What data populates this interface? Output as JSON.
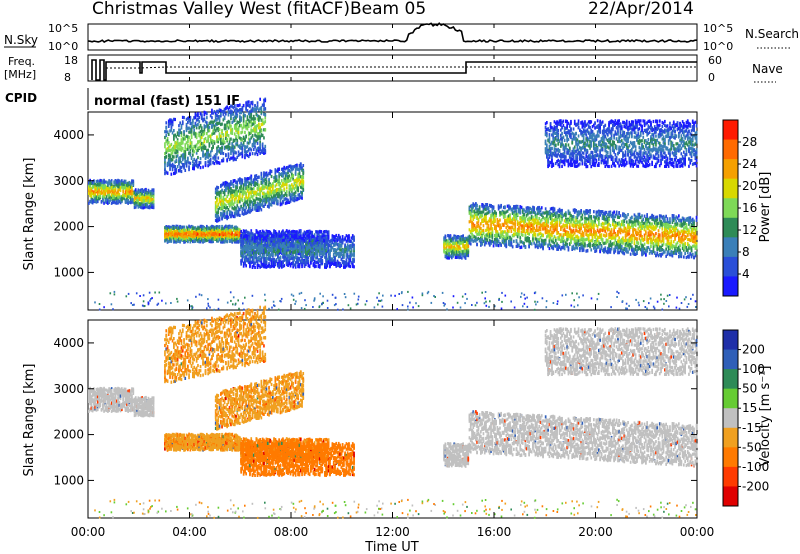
{
  "header": {
    "title": "Christmas Valley West (fitACF)",
    "beam": "Beam 05",
    "date": "22/Apr/2014"
  },
  "top_panels": {
    "nsky_label": "N.Sky",
    "nsearch_label": "N.Search",
    "freq_label_1": "Freq.",
    "freq_label_2": "[MHz]",
    "nave_label": "Nave",
    "cpid_label": "CPID",
    "cpid_value": "normal (fast) 151 IF",
    "noise_ticks": [
      "10^5",
      "10^0"
    ],
    "freq_ticks": [
      "18",
      "8"
    ],
    "nave_ticks": [
      "60",
      "0"
    ]
  },
  "x_axis": {
    "label": "Time UT",
    "ticks": [
      "00:00",
      "04:00",
      "08:00",
      "12:00",
      "16:00",
      "20:00",
      "00:00"
    ]
  },
  "power_panel": {
    "ylabel": "Slant Range [km]",
    "yticks": [
      "1000",
      "2000",
      "3000",
      "4000"
    ],
    "colorbar_label": "Power [dB]",
    "colorbar_ticks": [
      "4",
      "8",
      "12",
      "16",
      "20",
      "24",
      "28"
    ],
    "colors": [
      "#1a1aff",
      "#2a4fd8",
      "#3a7fb8",
      "#2e8b57",
      "#7ed957",
      "#d8d800",
      "#f5a000",
      "#ff6a00",
      "#ff1a00"
    ]
  },
  "velocity_panel": {
    "ylabel": "Slant Range [km]",
    "yticks": [
      "1000",
      "2000",
      "3000",
      "4000"
    ],
    "colorbar_label": "Velocity [m s⁻¹]",
    "colorbar_ticks": [
      "200",
      "100",
      "50",
      "15",
      "-15",
      "-50",
      "-100",
      "-200"
    ],
    "colors": [
      "#1f2fa8",
      "#2f5fb8",
      "#2e8b57",
      "#66cc33",
      "#c0c0c0",
      "#f0a020",
      "#ff7a00",
      "#ff3b00",
      "#e00000"
    ]
  },
  "chart_data": {
    "type": "heatmap",
    "x_range_hours": [
      0,
      24
    ],
    "y_range_km": [
      180,
      4500
    ],
    "echo_bands": [
      {
        "t": [
          0.0,
          1.8
        ],
        "range_km": [
          2500,
          3000
        ],
        "power_db": 24,
        "velocity": 0
      },
      {
        "t": [
          1.8,
          2.6
        ],
        "range_km": [
          2400,
          2800
        ],
        "power_db": 22,
        "velocity": 0
      },
      {
        "t": [
          3.0,
          6.0
        ],
        "range_km": [
          1650,
          2000
        ],
        "power_db": 27,
        "velocity": -40
      },
      {
        "t": [
          5.0,
          8.5
        ],
        "range_km": [
          2100,
          2900
        ],
        "power_db": 20,
        "velocity": -40
      },
      {
        "t": [
          3.0,
          7.0
        ],
        "range_km": [
          3100,
          4300
        ],
        "power_db": 18,
        "velocity": -40
      },
      {
        "t": [
          6.0,
          9.5
        ],
        "range_km": [
          1400,
          1900
        ],
        "power_db": 14,
        "velocity": -60
      },
      {
        "t": [
          6.0,
          10.5
        ],
        "range_km": [
          1100,
          1800
        ],
        "power_db": 12,
        "velocity": -70
      },
      {
        "t": [
          14.0,
          15.0
        ],
        "range_km": [
          1300,
          1800
        ],
        "power_db": 22,
        "velocity": 0
      },
      {
        "t": [
          15.0,
          24.0
        ],
        "range_km": [
          1600,
          2500
        ],
        "power_db": 25,
        "velocity": 0
      },
      {
        "t": [
          18.0,
          24.0
        ],
        "range_km": [
          3300,
          4300
        ],
        "power_db": 12,
        "velocity": 0
      }
    ]
  }
}
